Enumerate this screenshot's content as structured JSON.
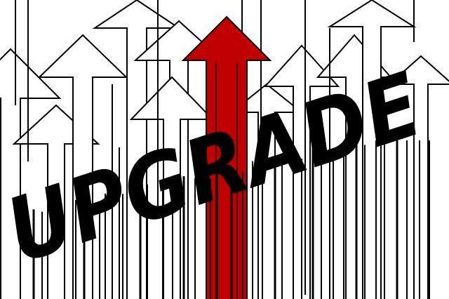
{
  "illustration": {
    "word": "UPGRADE",
    "colors": {
      "background": "#ffffff",
      "outline": "#000000",
      "accent_arrow": "#c00000",
      "word": "#000000"
    },
    "icons": [
      "outline-arrow-icon",
      "red-arrow-icon"
    ]
  }
}
